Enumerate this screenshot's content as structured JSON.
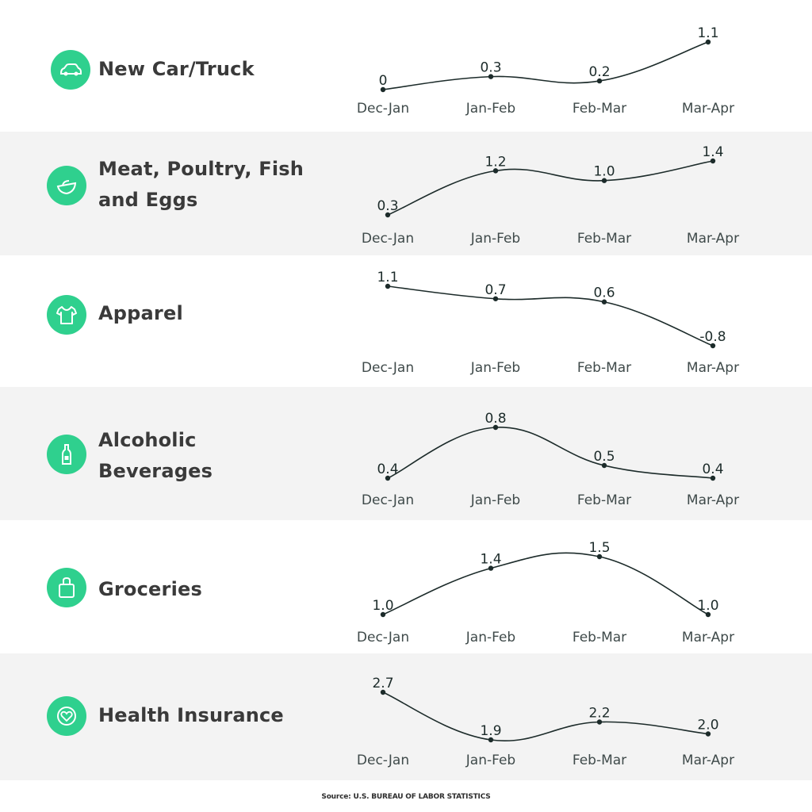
{
  "chart_data": [
    {
      "type": "line",
      "title": "New Car/Truck",
      "icon": "car-icon",
      "categories": [
        "Dec-Jan",
        "Jan-Feb",
        "Feb-Mar",
        "Mar-Apr"
      ],
      "values": [
        0,
        0.3,
        0.2,
        1.1
      ],
      "value_labels": [
        "0",
        "0.3",
        "0.2",
        "1.1"
      ]
    },
    {
      "type": "line",
      "title": "Meat, Poultry, Fish\nand Eggs",
      "icon": "food-bowl-icon",
      "categories": [
        "Dec-Jan",
        "Jan-Feb",
        "Feb-Mar",
        "Mar-Apr"
      ],
      "values": [
        0.3,
        1.2,
        1.0,
        1.4
      ],
      "value_labels": [
        "0.3",
        "1.2",
        "1.0",
        "1.4"
      ]
    },
    {
      "type": "line",
      "title": "Apparel",
      "icon": "shirt-icon",
      "categories": [
        "Dec-Jan",
        "Jan-Feb",
        "Feb-Mar",
        "Mar-Apr"
      ],
      "values": [
        1.1,
        0.7,
        0.6,
        -0.8
      ],
      "value_labels": [
        "1.1",
        "0.7",
        "0.6",
        "-0.8"
      ]
    },
    {
      "type": "line",
      "title": "Alcoholic\nBeverages",
      "icon": "bottle-icon",
      "categories": [
        "Dec-Jan",
        "Jan-Feb",
        "Feb-Mar",
        "Mar-Apr"
      ],
      "values": [
        0.4,
        0.8,
        0.5,
        0.4
      ],
      "value_labels": [
        "0.4",
        "0.8",
        "0.5",
        "0.4"
      ]
    },
    {
      "type": "line",
      "title": "Groceries",
      "icon": "shopping-bag-icon",
      "categories": [
        "Dec-Jan",
        "Jan-Feb",
        "Feb-Mar",
        "Mar-Apr"
      ],
      "values": [
        1.0,
        1.4,
        1.5,
        1.0
      ],
      "value_labels": [
        "1.0",
        "1.4",
        "1.5",
        "1.0"
      ]
    },
    {
      "type": "line",
      "title": "Health Insurance",
      "icon": "health-insurance-icon",
      "categories": [
        "Dec-Jan",
        "Jan-Feb",
        "Feb-Mar",
        "Mar-Apr"
      ],
      "values": [
        2.7,
        1.9,
        2.2,
        2.0
      ],
      "value_labels": [
        "2.7",
        "1.9",
        "2.2",
        "2.0"
      ]
    }
  ],
  "source": "Source: U.S. BUREAU OF LABOR STATISTICS",
  "colors": {
    "accent": "#2fd08e",
    "line": "#1c2b2a",
    "row_shade": "#f3f3f3",
    "label_text": "#3a3a3a"
  }
}
